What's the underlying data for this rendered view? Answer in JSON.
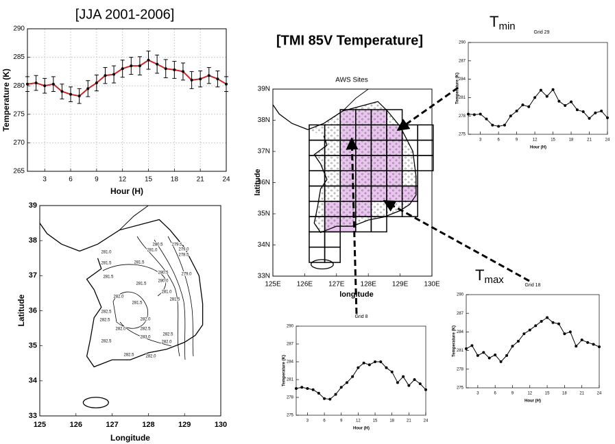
{
  "chart_data": [
    {
      "type": "errorline",
      "title": "[JJA 2001-2006]",
      "x_label": "Hour (H)",
      "y_label": "Temperature (K)",
      "x": [
        1,
        2,
        3,
        4,
        5,
        6,
        7,
        8,
        9,
        10,
        11,
        12,
        13,
        14,
        15,
        16,
        17,
        18,
        19,
        20,
        21,
        22,
        23,
        24
      ],
      "values": [
        280.3,
        280.5,
        280.0,
        280.3,
        279.0,
        278.5,
        278.2,
        279.5,
        280.5,
        281.8,
        282.0,
        283.0,
        283.5,
        283.5,
        284.5,
        283.8,
        283.0,
        282.8,
        282.5,
        281.0,
        281.2,
        281.8,
        281.2,
        280.3
      ],
      "errors": [
        1.3,
        1.3,
        1.3,
        1.3,
        1.3,
        1.3,
        1.3,
        1.4,
        1.4,
        1.4,
        1.5,
        1.5,
        1.5,
        1.6,
        1.6,
        1.6,
        1.6,
        1.5,
        1.5,
        1.5,
        1.4,
        1.4,
        1.4,
        1.3
      ],
      "color": "#cc2222",
      "xlim": [
        1,
        24
      ],
      "ylim": [
        265,
        290
      ],
      "xticks": [
        3,
        6,
        9,
        12,
        15,
        18,
        21,
        24
      ],
      "yticks": [
        265,
        270,
        275,
        280,
        285,
        290
      ],
      "grid": true
    },
    {
      "type": "contour_map",
      "x_label": "Longitude",
      "y_label": "Latitude",
      "xlim": [
        125,
        130
      ],
      "ylim": [
        33,
        39
      ],
      "xticks": [
        125,
        126,
        127,
        128,
        129,
        130
      ],
      "yticks": [
        33,
        34,
        35,
        36,
        37,
        38,
        39
      ],
      "contour_labels": [
        "280.5",
        "279.5",
        "279.0",
        "278.5",
        "281.0",
        "281.0",
        "281.5",
        "281.5",
        "281.5",
        "280.5",
        "281.5",
        "279.0",
        "280.0",
        "281.0",
        "281.5",
        "282.0",
        "281.5",
        "282.0",
        "282.5",
        "282.5",
        "282.0",
        "282.5",
        "283.0",
        "282.5",
        "282.0",
        "282.5",
        "282.5",
        "282.0"
      ]
    },
    {
      "type": "site_map",
      "title": "[TMI 85V Temperature]",
      "subtitle": "AWS Sites",
      "x_label": "longitude",
      "y_label": "latitude",
      "xlim": [
        125,
        130
      ],
      "ylim": [
        33,
        39
      ],
      "xticks": [
        {
          "value": 125,
          "label": "125E"
        },
        {
          "value": 126,
          "label": "126E"
        },
        {
          "value": 127,
          "label": "127E"
        },
        {
          "value": 128,
          "label": "128E"
        },
        {
          "value": 129,
          "label": "129E"
        },
        {
          "value": 130,
          "label": "130E"
        }
      ],
      "yticks": [
        {
          "value": 33,
          "label": "33N"
        },
        {
          "value": 34,
          "label": "34N"
        },
        {
          "value": 35,
          "label": "35N"
        },
        {
          "value": 36,
          "label": "36N"
        },
        {
          "value": 37,
          "label": "37N"
        },
        {
          "value": 38,
          "label": "38N"
        },
        {
          "value": 39,
          "label": "39N"
        }
      ]
    },
    {
      "type": "line",
      "title": "Grid 29",
      "annotation": {
        "main": "T",
        "sub": "min"
      },
      "x_label": "Hour (H)",
      "y_label": "Temperature (K)",
      "x": [
        1,
        2,
        3,
        4,
        5,
        6,
        7,
        8,
        9,
        10,
        11,
        12,
        13,
        14,
        15,
        16,
        17,
        18,
        19,
        20,
        21,
        22,
        23,
        24
      ],
      "values": [
        278.3,
        278.2,
        278.3,
        277.5,
        276.5,
        276.3,
        276.5,
        278.0,
        278.8,
        279.8,
        279.5,
        281.0,
        282.2,
        281.2,
        282.3,
        280.4,
        279.7,
        280.3,
        279.0,
        278.7,
        277.6,
        278.5,
        278.8,
        277.7
      ],
      "color": "#000000",
      "xlim": [
        1,
        24
      ],
      "ylim": [
        275,
        290
      ],
      "xticks": [
        3,
        6,
        9,
        12,
        15,
        18,
        21,
        24
      ],
      "yticks": [
        275,
        278,
        281,
        284,
        287,
        290
      ]
    },
    {
      "type": "line",
      "title": "Grid 8",
      "x_label": "Hour (H)",
      "y_label": "Temperature (K)",
      "x": [
        1,
        2,
        3,
        4,
        5,
        6,
        7,
        8,
        9,
        10,
        11,
        12,
        13,
        14,
        15,
        16,
        17,
        18,
        19,
        20,
        21,
        22,
        23,
        24
      ],
      "values": [
        279.5,
        279.7,
        279.5,
        279.3,
        278.7,
        277.8,
        277.7,
        278.5,
        279.7,
        280.5,
        281.5,
        283.0,
        283.8,
        283.5,
        284.0,
        284.0,
        283.0,
        282.3,
        280.5,
        281.5,
        280.0,
        281.0,
        280.3,
        279.3
      ],
      "color": "#000000",
      "xlim": [
        1,
        24
      ],
      "ylim": [
        275,
        290
      ],
      "xticks": [
        3,
        6,
        9,
        12,
        15,
        18,
        21,
        24
      ],
      "yticks": [
        275,
        278,
        281,
        284,
        287,
        290
      ]
    },
    {
      "type": "line",
      "title": "Grid 18",
      "annotation": {
        "main": "T",
        "sub": "max"
      },
      "x_label": "Hour (H)",
      "y_label": "Temperature (K)",
      "x": [
        1,
        2,
        3,
        4,
        5,
        6,
        7,
        8,
        9,
        10,
        11,
        12,
        13,
        14,
        15,
        16,
        17,
        18,
        19,
        20,
        21,
        22,
        23,
        24
      ],
      "values": [
        281.3,
        281.8,
        280.2,
        280.7,
        279.8,
        280.3,
        279.2,
        280.2,
        281.7,
        282.5,
        283.7,
        284.3,
        285.0,
        285.7,
        286.3,
        285.5,
        285.3,
        283.7,
        284.0,
        281.7,
        282.7,
        282.3,
        282.0,
        281.6
      ],
      "color": "#000000",
      "xlim": [
        1,
        24
      ],
      "ylim": [
        275,
        290
      ],
      "xticks": [
        3,
        6,
        9,
        12,
        15,
        18,
        21,
        24
      ],
      "yticks": [
        275,
        278,
        281,
        284,
        287,
        290
      ]
    }
  ]
}
